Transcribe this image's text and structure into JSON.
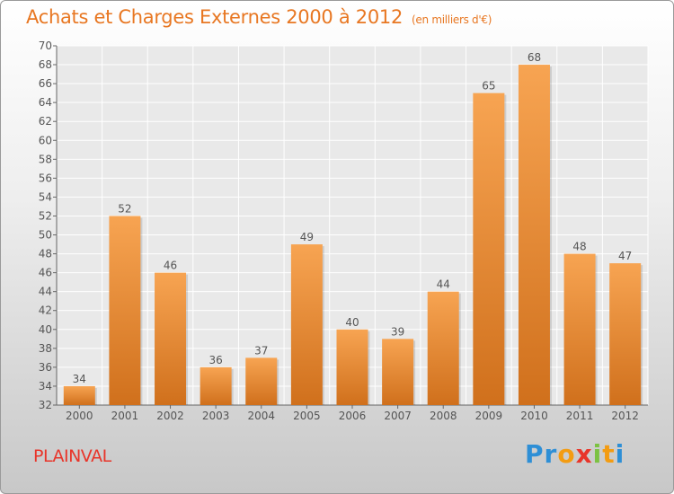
{
  "header": {
    "title": "Achats et Charges Externes 2000 à 2012",
    "subtitle": "(en milliers d'€)"
  },
  "footer": {
    "commune": "PLAINVAL",
    "logo": {
      "letters": [
        "P",
        "r",
        "o",
        "x",
        "i",
        "t",
        "i"
      ],
      "colors": [
        "#2e8fd6",
        "#2e8fd6",
        "#f39c12",
        "#e8352a",
        "#7cc242",
        "#f39c12",
        "#2e8fd6"
      ]
    }
  },
  "colors": {
    "bar_top": "#f7a452",
    "bar_bottom": "#d0701c",
    "label": "#555555",
    "grid": "#ffffff"
  },
  "chart_data": {
    "type": "bar",
    "categories": [
      "2000",
      "2001",
      "2002",
      "2003",
      "2004",
      "2005",
      "2006",
      "2007",
      "2008",
      "2009",
      "2010",
      "2011",
      "2012"
    ],
    "values": [
      34,
      52,
      46,
      36,
      37,
      49,
      40,
      39,
      44,
      65,
      68,
      48,
      47
    ],
    "ylim": [
      32,
      70
    ],
    "ytick_step": 2,
    "grid": true,
    "data_labels": true
  }
}
